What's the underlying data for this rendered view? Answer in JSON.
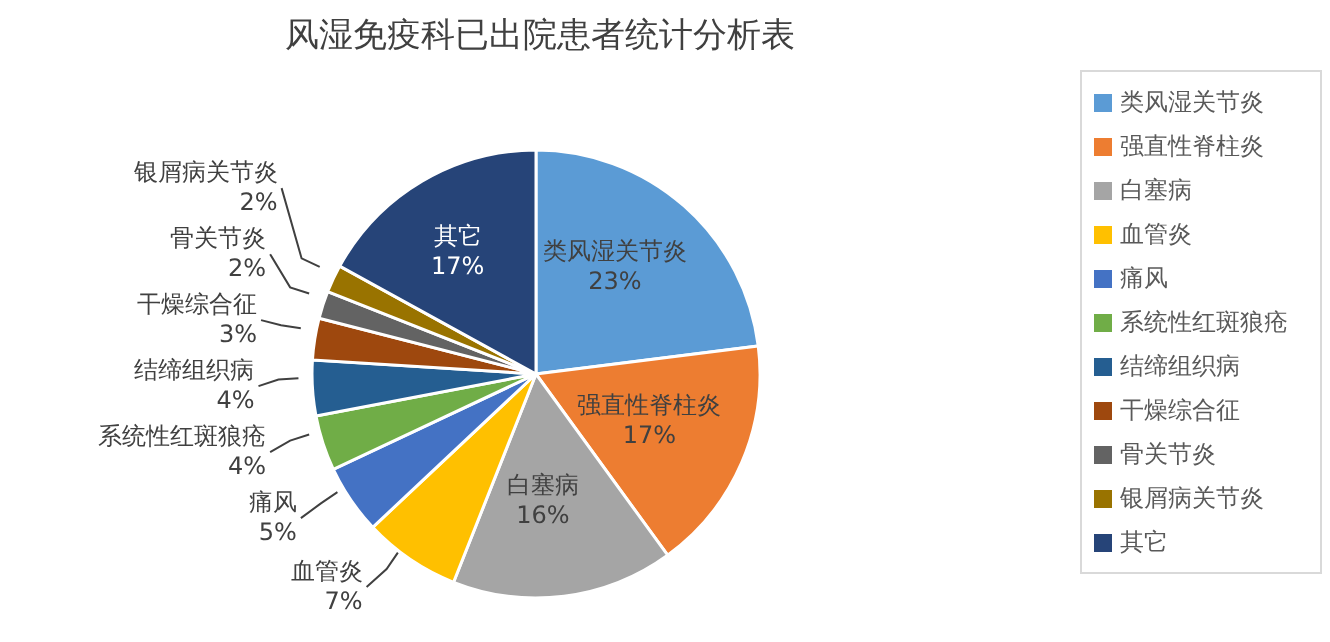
{
  "chart_data": {
    "type": "pie",
    "title": "风湿免疫科已出院患者统计分析表",
    "categories": [
      "类风湿关节炎",
      "强直性脊柱炎",
      "白塞病",
      "血管炎",
      "痛风",
      "系统性红斑狼疮",
      "结缔组织病",
      "干燥综合征",
      "骨关节炎",
      "银屑病关节炎",
      "其它"
    ],
    "values": [
      23,
      17,
      16,
      7,
      5,
      4,
      4,
      3,
      2,
      2,
      17
    ],
    "value_labels": [
      "23%",
      "17%",
      "16%",
      "7%",
      "5%",
      "4%",
      "4%",
      "3%",
      "2%",
      "2%",
      "17%"
    ],
    "colors": [
      "#5b9bd5",
      "#ed7d31",
      "#a5a5a5",
      "#ffc000",
      "#4472c4",
      "#70ad47",
      "#255e91",
      "#9e480e",
      "#636363",
      "#997300",
      "#264478"
    ],
    "legend": "right"
  }
}
